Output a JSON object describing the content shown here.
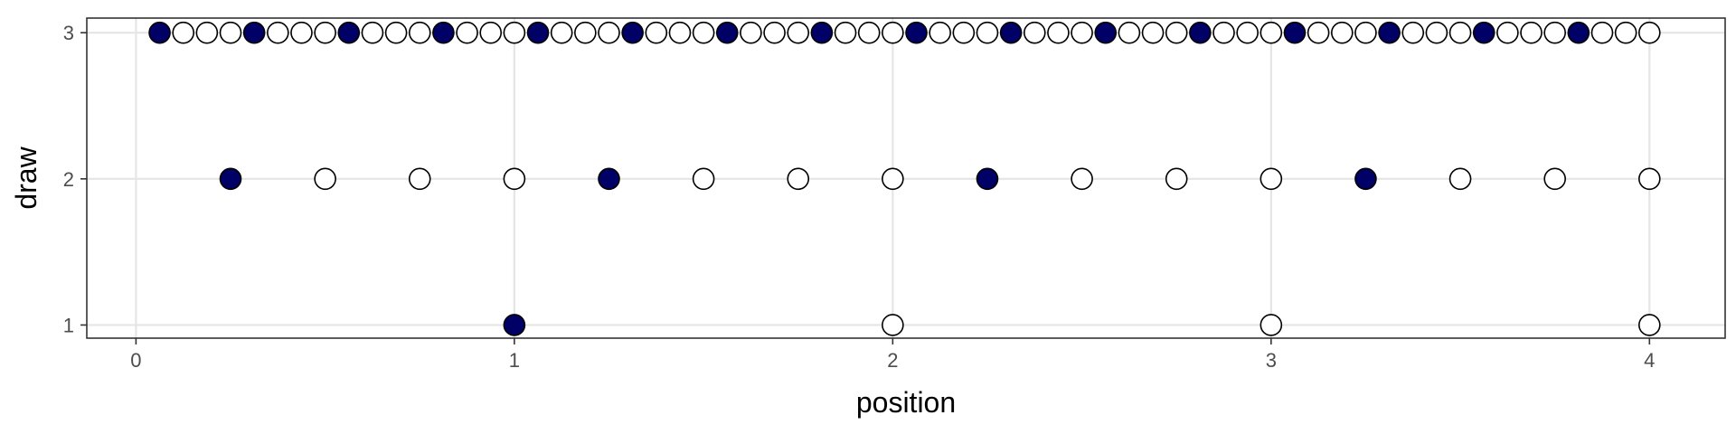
{
  "chart_data": {
    "type": "scatter",
    "title": "",
    "xlabel": "position",
    "ylabel": "draw",
    "xlim": [
      -0.13,
      4.2
    ],
    "ylim": [
      0.91,
      3.1
    ],
    "x_ticks": [
      0,
      1,
      2,
      3,
      4
    ],
    "x_tick_labels": [
      "0",
      "1",
      "2",
      "3",
      "4"
    ],
    "y_ticks": [
      1,
      2,
      3
    ],
    "y_tick_labels": [
      "1",
      "2",
      "3"
    ],
    "grid": true,
    "legend": "none",
    "colors": {
      "filled": "#000066",
      "hollow": "#ffffff",
      "outline": "#000000"
    },
    "series": [
      {
        "draw": 1,
        "step": 1,
        "count": 4,
        "filled_every": 4,
        "filled_offset": 0
      },
      {
        "draw": 2,
        "step": 0.25,
        "count": 16,
        "filled_every": 4,
        "filled_offset": 0
      },
      {
        "draw": 3,
        "step": 0.0625,
        "count": 64,
        "filled_every": 4,
        "filled_offset": 0
      }
    ]
  }
}
